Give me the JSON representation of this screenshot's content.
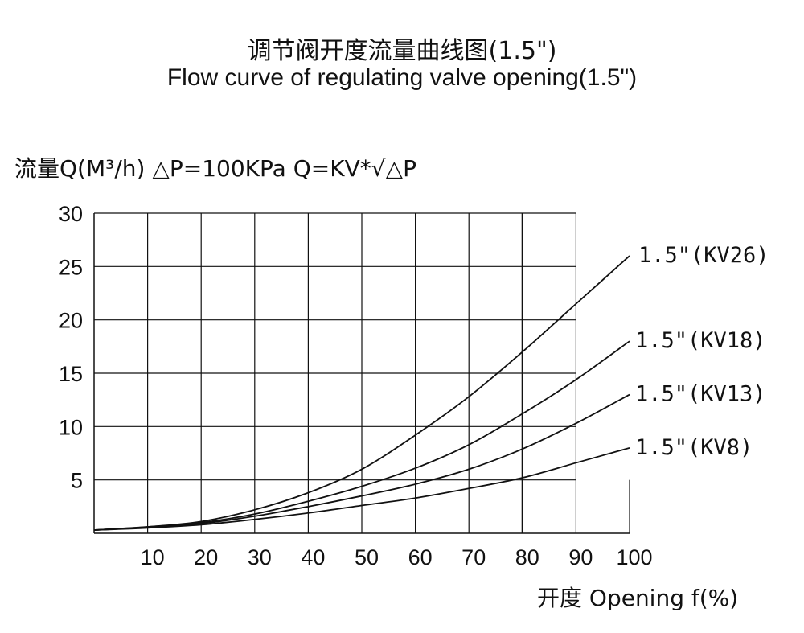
{
  "title_cn": "调节阀开度流量曲线图(1.5\")",
  "title_en": "Flow curve of regulating valve opening(1.5\")",
  "ylabel": "流量Q(M³/h) △P=100KPa Q=KV*√△P",
  "xlabel": "开度 Opening f(%)",
  "chart_data": {
    "type": "line",
    "title": "调节阀开度流量曲线图(1.5\") Flow curve of regulating valve opening(1.5\")",
    "xlabel": "开度 Opening f(%)",
    "ylabel": "流量Q(M³/h) △P=100KPa Q=KV*√△P",
    "xlim": [
      0,
      100
    ],
    "ylim": [
      0,
      30
    ],
    "x_ticks": [
      "10",
      "20",
      "30",
      "40",
      "50",
      "60",
      "70",
      "80",
      "90",
      "100"
    ],
    "y_ticks": [
      "5",
      "10",
      "15",
      "20",
      "25",
      "30"
    ],
    "grid": true,
    "x": [
      0,
      10,
      20,
      30,
      40,
      50,
      60,
      70,
      80,
      90,
      100
    ],
    "series": [
      {
        "name": "1.5\"(KV26)",
        "values": [
          0.3,
          0.6,
          1.1,
          2.2,
          3.8,
          6.0,
          9.2,
          12.8,
          17.0,
          21.5,
          26.0
        ]
      },
      {
        "name": "1.5\"(KV18)",
        "values": [
          0.3,
          0.6,
          1.0,
          1.8,
          3.0,
          4.4,
          6.1,
          8.3,
          11.2,
          14.4,
          18.0
        ]
      },
      {
        "name": "1.5\"(KV13)",
        "values": [
          0.3,
          0.55,
          0.9,
          1.6,
          2.5,
          3.5,
          4.6,
          6.0,
          7.9,
          10.3,
          13.0
        ]
      },
      {
        "name": "1.5\"(KV8)",
        "values": [
          0.3,
          0.5,
          0.8,
          1.3,
          1.9,
          2.6,
          3.3,
          4.2,
          5.2,
          6.6,
          8.0
        ]
      }
    ]
  }
}
